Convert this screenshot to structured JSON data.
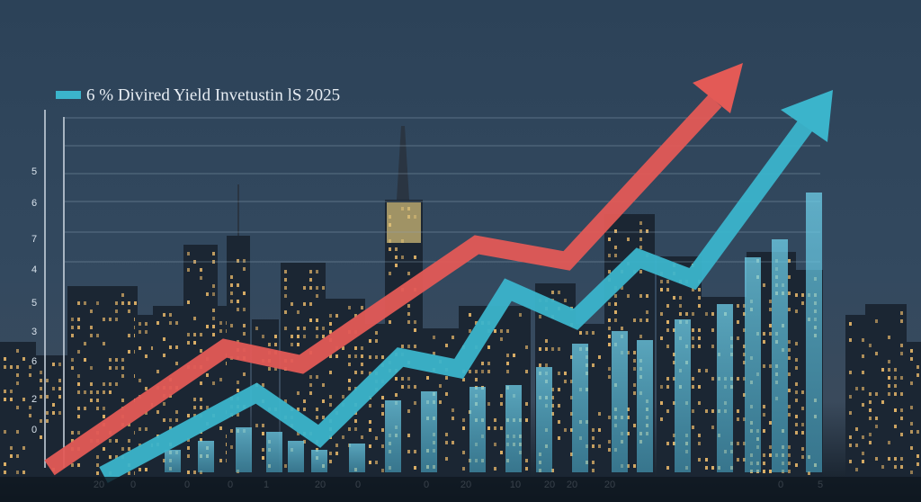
{
  "title": "6 % Divired Yield Invetustin lS 2025",
  "y_axis_labels": [
    "5",
    "6",
    "7",
    "4",
    "5",
    "3",
    "6",
    "2",
    "0"
  ],
  "x_axis_labels": [
    "20",
    "0",
    "0",
    "0",
    "1",
    "20",
    "0",
    "0",
    "20",
    "10",
    "20",
    "20",
    "20",
    "0",
    "5"
  ]
}
